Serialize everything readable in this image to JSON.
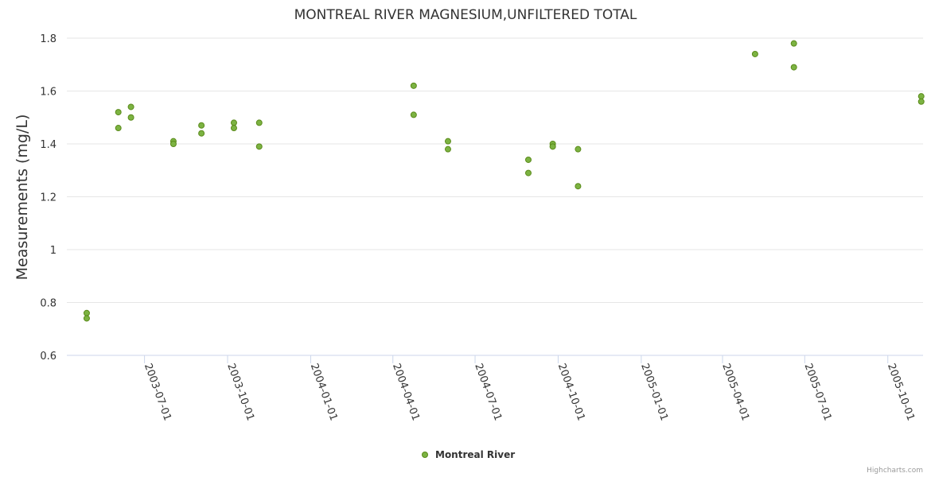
{
  "chart_data": {
    "type": "scatter",
    "title": "MONTREAL RIVER MAGNESIUM,UNFILTERED TOTAL",
    "xlabel": "",
    "ylabel": "Measurements (mg/L)",
    "x_axis_type": "datetime",
    "xlim": [
      "2003-04-06",
      "2005-11-09"
    ],
    "ylim": [
      0.6,
      1.8
    ],
    "y_ticks": [
      "0.6",
      "0.8",
      "1",
      "1.2",
      "1.4",
      "1.6",
      "1.8"
    ],
    "x_ticks": [
      "2003-07-01",
      "2003-10-01",
      "2004-01-01",
      "2004-04-01",
      "2004-07-01",
      "2004-10-01",
      "2005-01-01",
      "2005-04-01",
      "2005-07-01",
      "2005-10-01"
    ],
    "grid": "horizontal",
    "legend_position": "bottom-center",
    "series": [
      {
        "name": "Montreal River",
        "color": "#7cb342",
        "points": [
          {
            "x": "2003-04-28",
            "y": 0.76
          },
          {
            "x": "2003-04-28",
            "y": 0.74
          },
          {
            "x": "2003-06-02",
            "y": 1.52
          },
          {
            "x": "2003-06-02",
            "y": 1.46
          },
          {
            "x": "2003-06-16",
            "y": 1.54
          },
          {
            "x": "2003-06-16",
            "y": 1.5
          },
          {
            "x": "2003-08-02",
            "y": 1.41
          },
          {
            "x": "2003-08-02",
            "y": 1.4
          },
          {
            "x": "2003-09-02",
            "y": 1.47
          },
          {
            "x": "2003-09-02",
            "y": 1.44
          },
          {
            "x": "2003-10-08",
            "y": 1.48
          },
          {
            "x": "2003-10-08",
            "y": 1.46
          },
          {
            "x": "2003-11-05",
            "y": 1.48
          },
          {
            "x": "2003-11-05",
            "y": 1.39
          },
          {
            "x": "2004-04-24",
            "y": 1.62
          },
          {
            "x": "2004-04-24",
            "y": 1.51
          },
          {
            "x": "2004-06-01",
            "y": 1.41
          },
          {
            "x": "2004-06-01",
            "y": 1.38
          },
          {
            "x": "2004-08-29",
            "y": 1.34
          },
          {
            "x": "2004-08-29",
            "y": 1.29
          },
          {
            "x": "2004-09-25",
            "y": 1.4
          },
          {
            "x": "2004-09-25",
            "y": 1.39
          },
          {
            "x": "2004-10-23",
            "y": 1.38
          },
          {
            "x": "2004-10-23",
            "y": 1.24
          },
          {
            "x": "2005-05-07",
            "y": 1.74
          },
          {
            "x": "2005-06-19",
            "y": 1.78
          },
          {
            "x": "2005-06-19",
            "y": 1.69
          },
          {
            "x": "2005-11-07",
            "y": 1.58
          },
          {
            "x": "2005-11-07",
            "y": 1.56
          }
        ]
      }
    ]
  },
  "legend": {
    "label": "Montreal River"
  },
  "credits": "Highcharts.com",
  "colors": {
    "marker_fill": "#7cb342",
    "marker_stroke": "#5a8a1a",
    "grid": "#e6e6e6",
    "axis": "#ccd6eb",
    "text": "#333333"
  }
}
